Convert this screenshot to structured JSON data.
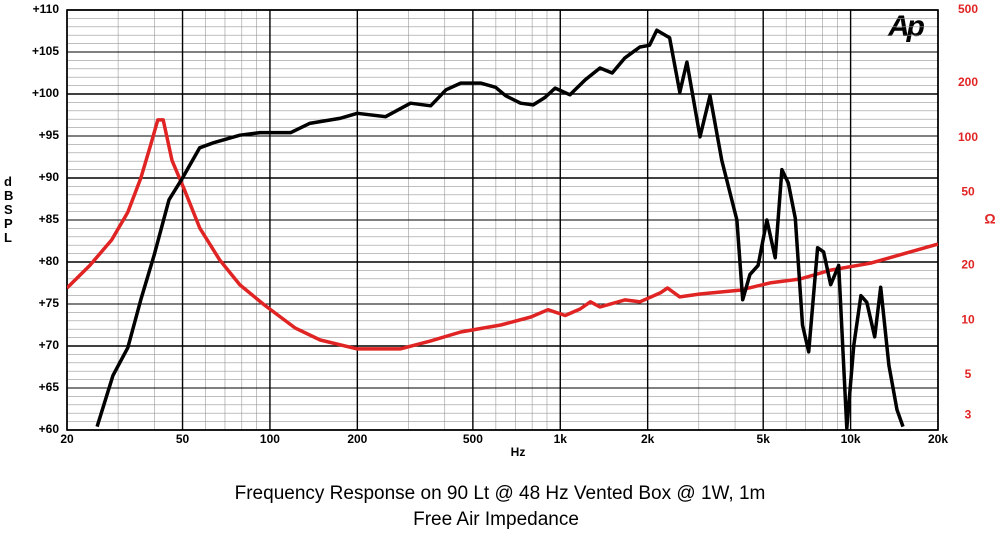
{
  "chart_data": {
    "type": "line",
    "title": "Frequency Response on 90 Lt @ 48 Hz Vented Box @ 1W, 1m",
    "subtitle": "Free Air Impedance",
    "logo": "Ap",
    "xlabel": "Hz",
    "ylabel": "dB SPL",
    "y2label": "Ω",
    "xscale": "log",
    "y2scale": "log",
    "grid": true,
    "xlim": [
      20,
      20000
    ],
    "ylim": [
      60,
      110
    ],
    "y2lim": [
      2.5,
      500
    ],
    "xticks": [
      20,
      50,
      100,
      200,
      500,
      {
        "value": 1000,
        "label": "1k"
      },
      {
        "value": 2000,
        "label": "2k"
      },
      {
        "value": 5000,
        "label": "5k"
      },
      {
        "value": 10000,
        "label": "10k"
      },
      {
        "value": 20000,
        "label": "20k"
      }
    ],
    "xminorticks": [
      30,
      40,
      60,
      70,
      80,
      90,
      300,
      400,
      600,
      700,
      800,
      900,
      3000,
      4000,
      6000,
      7000,
      8000,
      9000
    ],
    "yminor_step": 1,
    "yticks": [
      {
        "value": 60,
        "label": "+60"
      },
      {
        "value": 65,
        "label": "+65"
      },
      {
        "value": 70,
        "label": "+70"
      },
      {
        "value": 75,
        "label": "+75"
      },
      {
        "value": 80,
        "label": "+80"
      },
      {
        "value": 85,
        "label": "+85"
      },
      {
        "value": 90,
        "label": "+90"
      },
      {
        "value": 95,
        "label": "+95"
      },
      {
        "value": 100,
        "label": "+100"
      },
      {
        "value": 105,
        "label": "+105"
      },
      {
        "value": 110,
        "label": "+110"
      }
    ],
    "y2ticks": [
      500,
      200,
      100,
      50,
      20,
      10,
      5,
      3
    ],
    "series": [
      {
        "color": "#000000",
        "x": [
          25.4,
          28.8,
          32.4,
          35.9,
          39.9,
          44.9,
          50,
          57.3,
          64,
          78.8,
          92.5,
          118,
          137,
          174,
          200,
          250,
          305,
          358,
          404,
          454,
          532,
          599,
          648,
          730,
          807,
          887,
          960,
          1080,
          1220,
          1370,
          1510,
          1670,
          1880,
          2030,
          2150,
          2380,
          2580,
          2730,
          3030,
          3280,
          3600,
          4060,
          4250,
          4500,
          4800,
          5150,
          5500,
          5800,
          6100,
          6450,
          6830,
          7170,
          7700,
          8070,
          8540,
          9100,
          9700,
          10260,
          10850,
          11370,
          12110,
          12700,
          13550,
          14450,
          15150
        ],
        "values": [
          60.4,
          66.5,
          69.8,
          75.5,
          80.8,
          87.4,
          90,
          93.6,
          94.2,
          95.1,
          95.4,
          95.4,
          96.5,
          97.1,
          97.7,
          97.3,
          98.9,
          98.6,
          100.5,
          101.3,
          101.3,
          100.8,
          99.8,
          98.9,
          98.7,
          99.6,
          100.7,
          99.9,
          101.7,
          103.1,
          102.5,
          104.3,
          105.6,
          105.8,
          107.6,
          106.7,
          100.2,
          103.8,
          94.9,
          99.8,
          92.1,
          85,
          75.5,
          78.5,
          79.6,
          85,
          80.5,
          91,
          89.4,
          85.2,
          72.5,
          69.3,
          81.7,
          81.2,
          77.3,
          79.6,
          60.2,
          70.1,
          76,
          75.2,
          71.1,
          77,
          67.7,
          62.4,
          60.4
        ]
      },
      {
        "color": "#e02424",
        "axis": "y2",
        "x": [
          20,
          24,
          28.5,
          32.4,
          35.9,
          38.8,
          41.1,
          42.9,
          46,
          50.7,
          57.3,
          67.1,
          78.8,
          95.7,
          122,
          149,
          200,
          281,
          358,
          454,
          624,
          792,
          907,
          1040,
          1170,
          1270,
          1370,
          1670,
          1880,
          2210,
          2340,
          2580,
          3030,
          4170,
          5280,
          6700,
          8540,
          11700,
          14800,
          20000
        ],
        "values": [
          15,
          20,
          27.5,
          39,
          60,
          91,
          125,
          125,
          75,
          52,
          32,
          21.4,
          15.6,
          12.1,
          9.06,
          7.78,
          6.95,
          6.95,
          7.69,
          8.61,
          9.4,
          10.4,
          11.4,
          10.6,
          11.5,
          12.6,
          11.8,
          12.9,
          12.6,
          14.1,
          15,
          13.4,
          13.9,
          14.6,
          16,
          16.8,
          18.8,
          20.5,
          22.8,
          26.1
        ]
      }
    ]
  }
}
